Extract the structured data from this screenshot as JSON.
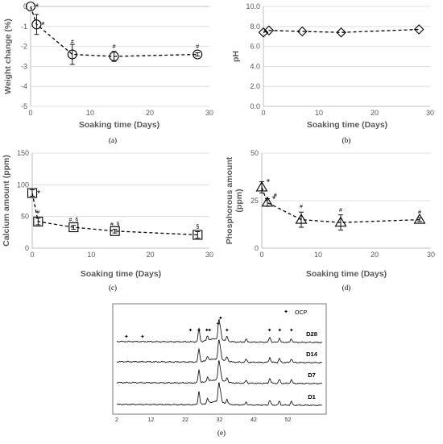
{
  "chart_data": [
    {
      "id": "a",
      "type": "line",
      "panel_label": "(a)",
      "xlabel": "Soaking time (Days)",
      "ylabel": "Weight change (%)",
      "xlim": [
        0,
        30
      ],
      "ylim": [
        -5,
        0
      ],
      "xticks": [
        "0",
        "10",
        "20",
        "30"
      ],
      "yticks": [
        "0",
        "-1",
        "-2",
        "-3",
        "-4",
        "-5"
      ],
      "grid": "horizontal",
      "marker": "circle",
      "series": [
        {
          "x": [
            0,
            1,
            7,
            14,
            28
          ],
          "y": [
            0,
            -0.9,
            -2.4,
            -2.5,
            -2.4
          ],
          "err": [
            0,
            0.5,
            0.5,
            0.25,
            0.08
          ]
        }
      ],
      "annotations": [
        {
          "x": 0,
          "y": 0,
          "text": "*",
          "kind": "star"
        },
        {
          "x": 1,
          "y": -0.9,
          "text": "*",
          "kind": "star"
        },
        {
          "x": 7,
          "y": -1.85,
          "text": "#",
          "kind": "mark"
        },
        {
          "x": 14,
          "y": -2.1,
          "text": "#",
          "kind": "mark"
        },
        {
          "x": 28,
          "y": -2.1,
          "text": "#",
          "kind": "mark"
        }
      ]
    },
    {
      "id": "b",
      "type": "line",
      "panel_label": "(b)",
      "xlabel": "Soaking time (Days)",
      "ylabel": "pH",
      "xlim": [
        0,
        30
      ],
      "ylim": [
        0,
        10
      ],
      "xticks": [
        "0",
        "10",
        "20",
        "30"
      ],
      "yticks": [
        "0.0",
        "2.0",
        "4.0",
        "6.0",
        "8.0",
        "10.0"
      ],
      "grid": "horizontal",
      "marker": "diamond",
      "series": [
        {
          "x": [
            0,
            1,
            7,
            14,
            28
          ],
          "y": [
            7.4,
            7.6,
            7.5,
            7.4,
            7.7
          ]
        }
      ],
      "annotations": []
    },
    {
      "id": "c",
      "type": "line",
      "panel_label": "(c)",
      "xlabel": "Soaking time (Days)",
      "ylabel": "Calcium amount (ppm)",
      "xlim": [
        0,
        30
      ],
      "ylim": [
        0,
        150
      ],
      "xticks": [
        "0",
        "10",
        "20",
        "30"
      ],
      "yticks": [
        "0",
        "50",
        "100",
        "150"
      ],
      "grid": "horizontal",
      "marker": "square",
      "series": [
        {
          "x": [
            0,
            1,
            7,
            14,
            28
          ],
          "y": [
            87,
            42,
            33,
            27,
            21
          ],
          "err": [
            5,
            5,
            3,
            3,
            5
          ]
        }
      ],
      "annotations": [
        {
          "x": 0,
          "y": 87,
          "text": "*",
          "kind": "star"
        },
        {
          "x": 1,
          "y": 54,
          "text": "#",
          "kind": "mark"
        },
        {
          "x": 7,
          "y": 42,
          "text": "#, §",
          "kind": "mark"
        },
        {
          "x": 14,
          "y": 35,
          "text": "#, §",
          "kind": "mark"
        },
        {
          "x": 28,
          "y": 31,
          "text": "§",
          "kind": "mark"
        }
      ]
    },
    {
      "id": "d",
      "type": "line",
      "panel_label": "(d)",
      "xlabel": "Soaking time (Days)",
      "ylabel": "Phosphorous  amount\n(ppm)",
      "xlim": [
        0,
        30
      ],
      "ylim": [
        0,
        50
      ],
      "xticks": [
        "0",
        "10",
        "20",
        "30"
      ],
      "yticks": [
        "0",
        "25",
        "50"
      ],
      "grid": "horizontal",
      "marker": "triangle",
      "series": [
        {
          "x": [
            0,
            1,
            7,
            14,
            28
          ],
          "y": [
            32,
            24,
            15,
            13.5,
            15
          ],
          "err": [
            3,
            2,
            4,
            4,
            1
          ]
        }
      ],
      "annotations": [
        {
          "x": 0,
          "y": 35,
          "text": "*",
          "kind": "star"
        },
        {
          "x": 1,
          "y": 26,
          "text": "*",
          "kind": "star"
        },
        {
          "x": 2.4,
          "y": 27,
          "text": "#",
          "kind": "mark"
        },
        {
          "x": 7,
          "y": 21,
          "text": "#",
          "kind": "mark"
        },
        {
          "x": 14,
          "y": 19,
          "text": "#",
          "kind": "mark"
        },
        {
          "x": 28,
          "y": 18,
          "text": "#",
          "kind": "mark"
        }
      ]
    },
    {
      "id": "e",
      "type": "line",
      "panel_label": "(e)",
      "xlabel": "",
      "ylabel": "",
      "xlim": [
        2,
        62
      ],
      "xticks": [
        "2",
        "12",
        "22",
        "32",
        "42",
        "52"
      ],
      "legend": {
        "symbol": "✦",
        "label": "OCP"
      },
      "series": [
        {
          "name": "D28",
          "offset": 3
        },
        {
          "name": "D14",
          "offset": 2
        },
        {
          "name": "D7",
          "offset": 1
        },
        {
          "name": "D1",
          "offset": 0
        }
      ],
      "peaks": [
        {
          "x": 26.0,
          "h": 1.0
        },
        {
          "x": 28.5,
          "h": 0.35
        },
        {
          "x": 31.8,
          "h": 1.4
        },
        {
          "x": 32.3,
          "h": 0.7
        },
        {
          "x": 34.2,
          "h": 0.35
        },
        {
          "x": 39.8,
          "h": 0.22
        },
        {
          "x": 46.7,
          "h": 0.38
        },
        {
          "x": 49.5,
          "h": 0.3
        },
        {
          "x": 53.0,
          "h": 0.28
        }
      ],
      "ocp_marks": [
        4.8,
        9.5,
        23.5,
        26.0,
        28.3,
        29.1,
        31.6,
        32.3,
        34.2,
        46.6,
        49.6,
        53.0
      ]
    }
  ]
}
